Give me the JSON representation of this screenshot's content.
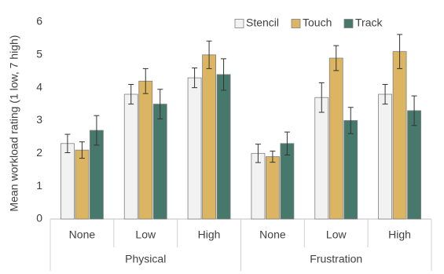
{
  "chart_data": {
    "type": "bar",
    "title": "",
    "xlabel": "",
    "ylabel": "Mean workload rating (1 low, 7 high)",
    "ylim": [
      0,
      6
    ],
    "yticks": [
      "0",
      "1",
      "2",
      "3",
      "4",
      "5",
      "6"
    ],
    "grid": false,
    "legend_position": "top-right",
    "categories": [
      "None",
      "Low",
      "High",
      "None",
      "Low",
      "High"
    ],
    "groups": [
      {
        "label": "Physical",
        "span": [
          0,
          2
        ]
      },
      {
        "label": "Frustration",
        "span": [
          3,
          5
        ]
      }
    ],
    "series": [
      {
        "name": "Stencil",
        "color": "#f2f2f2",
        "values": [
          2.3,
          3.8,
          4.3,
          2.0,
          3.7,
          3.8
        ],
        "error": [
          0.28,
          0.3,
          0.3,
          0.28,
          0.45,
          0.3
        ]
      },
      {
        "name": "Touch",
        "color": "#dcb563",
        "values": [
          2.1,
          4.2,
          5.0,
          1.9,
          4.9,
          5.1
        ],
        "error": [
          0.25,
          0.38,
          0.42,
          0.17,
          0.38,
          0.52
        ]
      },
      {
        "name": "Track",
        "color": "#46786b",
        "values": [
          2.7,
          3.5,
          4.4,
          2.3,
          3.0,
          3.3
        ],
        "error": [
          0.45,
          0.45,
          0.48,
          0.35,
          0.4,
          0.45
        ]
      }
    ]
  }
}
